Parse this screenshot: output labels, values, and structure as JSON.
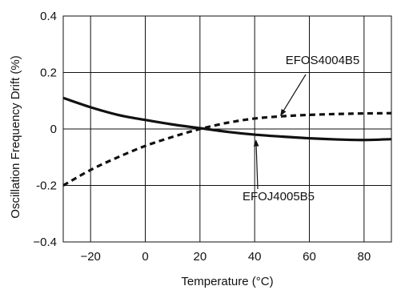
{
  "chart_data": {
    "type": "line",
    "title": "",
    "xlabel": "Temperature (°C)",
    "ylabel": "Oscillation Frequency Drift (%)",
    "xlim": [
      -30,
      90
    ],
    "ylim": [
      -0.4,
      0.4
    ],
    "x_ticks": [
      -20,
      0,
      20,
      40,
      60,
      80
    ],
    "x_tick_labels": [
      "−20",
      "0",
      "20",
      "40",
      "60",
      "80"
    ],
    "y_ticks": [
      0.4,
      0.2,
      0,
      -0.2,
      -0.4
    ],
    "y_tick_labels": [
      "0.4",
      "0.2",
      "0",
      "-0.2",
      "−0.4"
    ],
    "grid": true,
    "series": [
      {
        "name": "EFOS4004B5",
        "line_style": "dashed",
        "color": "#111111",
        "points": [
          {
            "x": -30,
            "y": -0.2
          },
          {
            "x": -20,
            "y": -0.145
          },
          {
            "x": -10,
            "y": -0.1
          },
          {
            "x": 0,
            "y": -0.06
          },
          {
            "x": 10,
            "y": -0.028
          },
          {
            "x": 20,
            "y": 0.0
          },
          {
            "x": 30,
            "y": 0.022
          },
          {
            "x": 40,
            "y": 0.037
          },
          {
            "x": 50,
            "y": 0.045
          },
          {
            "x": 60,
            "y": 0.05
          },
          {
            "x": 70,
            "y": 0.053
          },
          {
            "x": 80,
            "y": 0.055
          },
          {
            "x": 90,
            "y": 0.056
          }
        ]
      },
      {
        "name": "EFOJ4005B5",
        "line_style": "solid",
        "color": "#111111",
        "points": [
          {
            "x": -30,
            "y": 0.11
          },
          {
            "x": -20,
            "y": 0.077
          },
          {
            "x": -10,
            "y": 0.05
          },
          {
            "x": 0,
            "y": 0.032
          },
          {
            "x": 10,
            "y": 0.016
          },
          {
            "x": 20,
            "y": 0.003
          },
          {
            "x": 30,
            "y": -0.01
          },
          {
            "x": 40,
            "y": -0.02
          },
          {
            "x": 50,
            "y": -0.027
          },
          {
            "x": 60,
            "y": -0.033
          },
          {
            "x": 70,
            "y": -0.037
          },
          {
            "x": 80,
            "y": -0.039
          },
          {
            "x": 90,
            "y": -0.036
          }
        ]
      }
    ],
    "annotations": [
      {
        "text": "EFOS4004B5",
        "series": "EFOS4004B5",
        "target": {
          "x": 49.5,
          "y": 0.048
        }
      },
      {
        "text": "EFOJ4005B5",
        "series": "EFOJ4005B5",
        "target": {
          "x": 40.5,
          "y": -0.04
        }
      }
    ]
  }
}
